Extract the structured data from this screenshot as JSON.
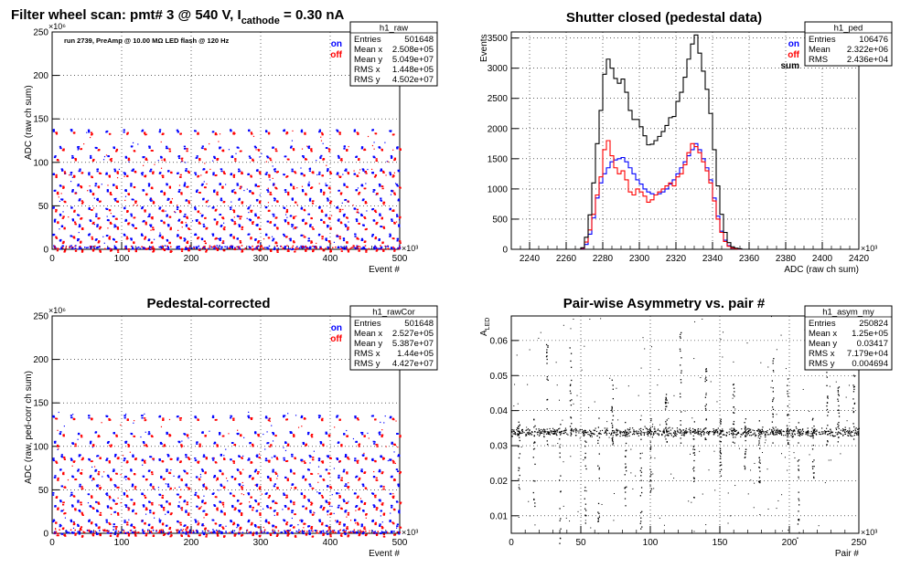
{
  "colors": {
    "on": "#0000ff",
    "off": "#ff0000",
    "sum": "#000000"
  },
  "chart_data": [
    {
      "type": "scatter",
      "title": "Filter wheel scan: pmt#   3 @   540 V, I",
      "title_sub": "cathode",
      "title_tail": " = 0.30 nA",
      "annotation": "run 2739, PreAmp @ 10.00 MΩ LED flash @  120 Hz",
      "xlabel": "Event #",
      "ylabel": "ADC (raw ch sum)",
      "x_multiplier": "×10³",
      "y_multiplier": "×10⁶",
      "xlim": [
        0,
        500
      ],
      "ylim": [
        0,
        250
      ],
      "xticks": [
        "0",
        "100",
        "200",
        "300",
        "400",
        "500"
      ],
      "yticks": [
        "0",
        "50",
        "100",
        "150",
        "200",
        "250"
      ],
      "grid": true,
      "legend": [
        "on",
        "off"
      ],
      "stats": {
        "name": "h1_raw",
        "rows": [
          [
            "Entries",
            "501648"
          ],
          [
            "Mean x",
            "2.508e+05"
          ],
          [
            "Mean y",
            "5.049e+07"
          ],
          [
            "RMS x",
            "1.448e+05"
          ],
          [
            "RMS y",
            "4.502e+07"
          ]
        ]
      },
      "levels": [
        [
          137,
          118
        ],
        [
          107,
          92
        ],
        [
          88,
          75
        ],
        [
          68,
          58
        ],
        [
          48,
          40
        ],
        [
          34,
          28
        ],
        [
          17,
          12
        ],
        [
          3,
          2
        ]
      ],
      "period": 25.5
    },
    {
      "type": "line",
      "title": "Shutter closed (pedestal data)",
      "xlabel": "ADC (raw ch sum)",
      "ylabel": "Events",
      "x_multiplier": "×10³",
      "xlim": [
        2230,
        2420
      ],
      "ylim": [
        0,
        3600
      ],
      "xticks": [
        "2240",
        "2260",
        "2280",
        "2300",
        "2320",
        "2340",
        "2360",
        "2380",
        "2400",
        "2420"
      ],
      "yticks": [
        "0",
        "500",
        "1000",
        "1500",
        "2000",
        "2500",
        "3000",
        "3500"
      ],
      "grid": true,
      "legend": [
        "on",
        "off",
        "sum"
      ],
      "stats": {
        "name": "h1_ped",
        "rows": [
          [
            "Entries",
            "106476"
          ],
          [
            "Mean",
            "2.322e+06"
          ],
          [
            "RMS",
            "2.436e+04"
          ]
        ]
      },
      "x_start": 2268,
      "bin_width": 2,
      "series": [
        {
          "name": "on",
          "values": [
            10,
            80,
            250,
            520,
            850,
            1100,
            1250,
            1350,
            1450,
            1480,
            1500,
            1520,
            1450,
            1350,
            1250,
            1150,
            1080,
            1000,
            950,
            920,
            900,
            920,
            950,
            1000,
            1080,
            1150,
            1250,
            1350,
            1450,
            1550,
            1650,
            1750,
            1650,
            1500,
            1350,
            1150,
            850,
            550,
            300,
            150,
            60,
            20,
            10,
            5
          ]
        },
        {
          "name": "off",
          "values": [
            15,
            120,
            320,
            580,
            900,
            1200,
            1650,
            1800,
            1550,
            1350,
            1250,
            1300,
            1150,
            950,
            900,
            1000,
            950,
            880,
            780,
            820,
            900,
            950,
            1000,
            1050,
            1100,
            1050,
            1200,
            1250,
            1400,
            1600,
            1750,
            1700,
            1600,
            1450,
            1300,
            1100,
            800,
            500,
            280,
            130,
            50,
            20,
            8,
            4
          ]
        },
        {
          "name": "sum",
          "values": [
            25,
            200,
            570,
            1100,
            1750,
            2300,
            2900,
            3150,
            3000,
            2830,
            2750,
            2820,
            2600,
            2300,
            2150,
            2150,
            2030,
            1880,
            1730,
            1740,
            1800,
            1870,
            1950,
            2050,
            2180,
            2200,
            2450,
            2600,
            2850,
            3150,
            3400,
            3550,
            3250,
            2950,
            2650,
            2250,
            1650,
            1050,
            580,
            280,
            110,
            40,
            18,
            9
          ]
        }
      ]
    },
    {
      "type": "scatter",
      "title": "Pedestal-corrected",
      "xlabel": "Event #",
      "ylabel": "ADC (raw, ped-corr ch sum)",
      "x_multiplier": "×10³",
      "y_multiplier": "×10⁶",
      "xlim": [
        0,
        500
      ],
      "ylim": [
        0,
        250
      ],
      "xticks": [
        "0",
        "100",
        "200",
        "300",
        "400",
        "500"
      ],
      "yticks": [
        "0",
        "50",
        "100",
        "150",
        "200",
        "250"
      ],
      "grid": true,
      "legend": [
        "on",
        "off"
      ],
      "stats": {
        "name": "h1_rawCor",
        "rows": [
          [
            "Entries",
            "501648"
          ],
          [
            "Mean x",
            "2.527e+05"
          ],
          [
            "Mean y",
            "5.387e+07"
          ],
          [
            "RMS x",
            "1.44e+05"
          ],
          [
            "RMS y",
            "4.427e+07"
          ]
        ]
      },
      "levels": [
        [
          135,
          116
        ],
        [
          105,
          90
        ],
        [
          86,
          73
        ],
        [
          66,
          56
        ],
        [
          46,
          38
        ],
        [
          32,
          26
        ],
        [
          15,
          10
        ],
        [
          2,
          1
        ]
      ],
      "period": 25.5
    },
    {
      "type": "scatter",
      "title": "Pair-wise Asymmetry vs. pair #",
      "xlabel": "Pair #",
      "ylabel": "A",
      "ylabel_sub": "LED",
      "x_multiplier": "×10³",
      "xlim": [
        0,
        250
      ],
      "ylim": [
        0.005,
        0.067
      ],
      "xticks": [
        "0",
        "50",
        "100",
        "150",
        "200",
        "250"
      ],
      "yticks": [
        "0.01",
        "0.02",
        "0.03",
        "0.04",
        "0.05",
        "0.06"
      ],
      "ytick_values": [
        0.01,
        0.02,
        0.03,
        0.04,
        0.05,
        0.06
      ],
      "grid": true,
      "stats": {
        "name": "h1_asym_my",
        "rows": [
          [
            "Entries",
            "250824"
          ],
          [
            "Mean x",
            "1.25e+05"
          ],
          [
            "Mean y",
            "0.03417"
          ],
          [
            "RMS x",
            "7.179e+04"
          ],
          [
            "RMS y",
            "0.004694"
          ]
        ]
      },
      "band_center": 0.034,
      "band_width": 0.0012
    }
  ]
}
